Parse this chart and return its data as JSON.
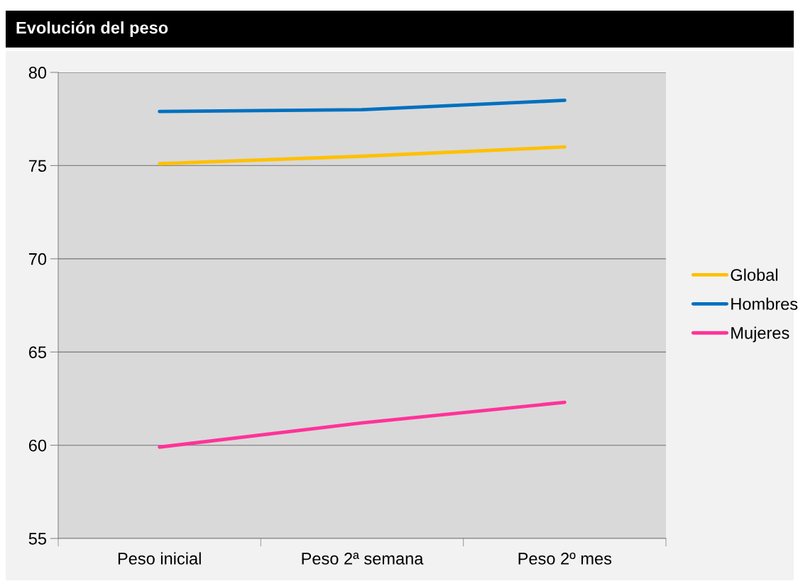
{
  "chart_data": {
    "type": "line",
    "title": "Evolución del peso",
    "categories": [
      "Peso inicial",
      "Peso 2ª semana",
      "Peso 2º mes"
    ],
    "series": [
      {
        "name": "Global",
        "color": "#ffc000",
        "values": [
          75.1,
          75.5,
          76.0
        ]
      },
      {
        "name": "Hombres",
        "color": "#0070c0",
        "values": [
          77.9,
          78.0,
          78.5
        ]
      },
      {
        "name": "Mujeres",
        "color": "#ff3399",
        "values": [
          59.9,
          61.2,
          62.3
        ]
      }
    ],
    "ylim": [
      55,
      80
    ],
    "yticks": [
      55,
      60,
      65,
      70,
      75,
      80
    ],
    "grid": "y",
    "legend": "right",
    "marker": "none",
    "line_style": "solid"
  }
}
